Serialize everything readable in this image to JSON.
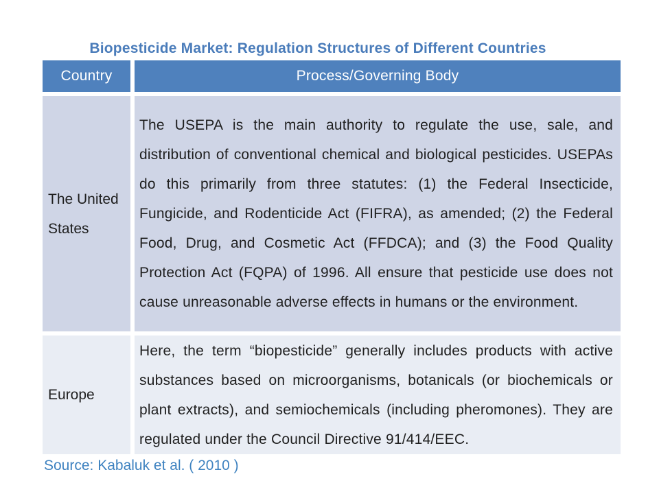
{
  "slide": {
    "title": "Biopesticide Market: Regulation Structures of Different Countries",
    "source": "Source: Kabaluk et al. ( 2010 )"
  },
  "table": {
    "headers": [
      "Country",
      "Process/Governing Body"
    ],
    "rows": [
      {
        "country": "The United States",
        "process": "The USEPA is the main authority to regulate the use, sale, and distribution of conventional chemical and biological pesticides. USEPAs do this primarily from three statutes: (1) the Federal Insecticide, Fungicide, and Rodenticide Act (FIFRA), as amended; (2) the Federal Food, Drug, and Cosmetic Act (FFDCA); and (3) the Food Quality Protection Act (FQPA) of 1996. All ensure that pesticide use does not cause unreasonable adverse effects in humans or the environment."
      },
      {
        "country": "Europe",
        "process": "Here, the term “biopesticide” generally includes products with active substances based on microorganisms, botanicals (or biochemicals or plant extracts), and semiochemicals (including pheromones). They are regulated under the Council Directive 91/414/EEC."
      }
    ]
  },
  "colors": {
    "header_bg": "#4F81BD",
    "header_text": "#FFFFFF",
    "row_odd_bg": "#CFD5E6",
    "row_even_bg": "#E9EDF4",
    "title_text": "#4A7CBA",
    "source_text": "#3E82C0",
    "body_text": "#1F1F1F"
  }
}
